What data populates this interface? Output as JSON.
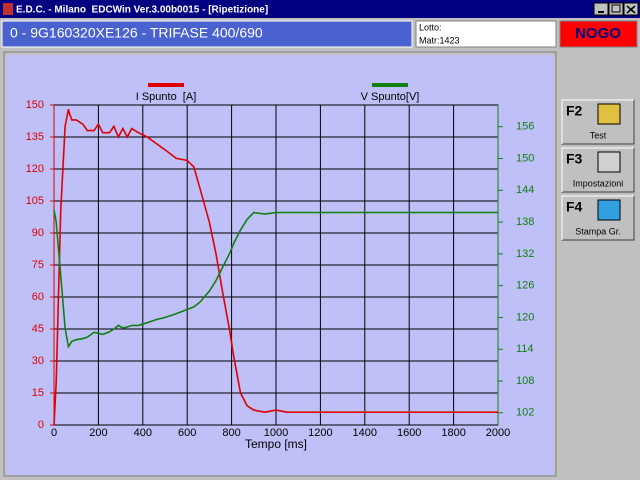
{
  "window": {
    "title": "E.D.C. - Milano  EDCWin Ver.3.00b0015 - [Ripetizione]"
  },
  "header": {
    "product": "0 - 9G160320XE126 - TRIFASE 400/690",
    "lot_label": "Lotto:",
    "serial": "Matr:1423",
    "result": "NOGO"
  },
  "toolbar": {
    "buttons": [
      {
        "key": "F2",
        "label": "Test"
      },
      {
        "key": "F3",
        "label": "Impostazioni"
      },
      {
        "key": "F4",
        "label": "Stampa Gr."
      }
    ]
  },
  "chart_data": {
    "type": "line",
    "x_label": "Tempo [ms]",
    "x": [
      0,
      10,
      30,
      50,
      65,
      70,
      80,
      100,
      130,
      150,
      180,
      200,
      220,
      250,
      270,
      290,
      310,
      330,
      350,
      380,
      420,
      460,
      500,
      550,
      600,
      630,
      660,
      700,
      730,
      760,
      790,
      810,
      840,
      870,
      900,
      950,
      1000,
      1050,
      1100,
      1200,
      2000
    ],
    "series": [
      {
        "name": "I Spunto  [A]",
        "color": "#e00000",
        "values": [
          0,
          20,
          100,
          140,
          148,
          146,
          143,
          143,
          141,
          138,
          138,
          141,
          137,
          137,
          140,
          135,
          139,
          135,
          139,
          137,
          135,
          132,
          129,
          125,
          124,
          121,
          110,
          95,
          80,
          62,
          45,
          32,
          15,
          9,
          7,
          6,
          7,
          6,
          6,
          6,
          6
        ]
      },
      {
        "name": "V Spunto[V]",
        "color": "#108010",
        "axis": "y2",
        "values": [
          140.3,
          138,
          128,
          118,
          114.5,
          114.8,
          115.5,
          115.8,
          116,
          116.3,
          117.2,
          117,
          116.8,
          117.3,
          117.8,
          118.5,
          118,
          118.2,
          118.5,
          118.5,
          119,
          119.6,
          120,
          120.7,
          121.5,
          122,
          123,
          125,
          127,
          129.5,
          132,
          134,
          136.5,
          138.5,
          139.8,
          139.5,
          139.8,
          139.8,
          139.8,
          139.8,
          139.8
        ]
      }
    ],
    "xlim": [
      0,
      2000
    ],
    "xticks": [
      0,
      200,
      400,
      600,
      800,
      1000,
      1200,
      1400,
      1600,
      1800,
      2000
    ],
    "ylim": [
      0,
      150
    ],
    "yticks": [
      0,
      15,
      30,
      45,
      60,
      75,
      90,
      105,
      120,
      135,
      150
    ],
    "y2lim": [
      99.7,
      160.1
    ],
    "y2ticks": [
      102,
      108,
      114,
      120,
      126,
      132,
      138,
      144,
      150,
      156
    ],
    "grid": true
  }
}
